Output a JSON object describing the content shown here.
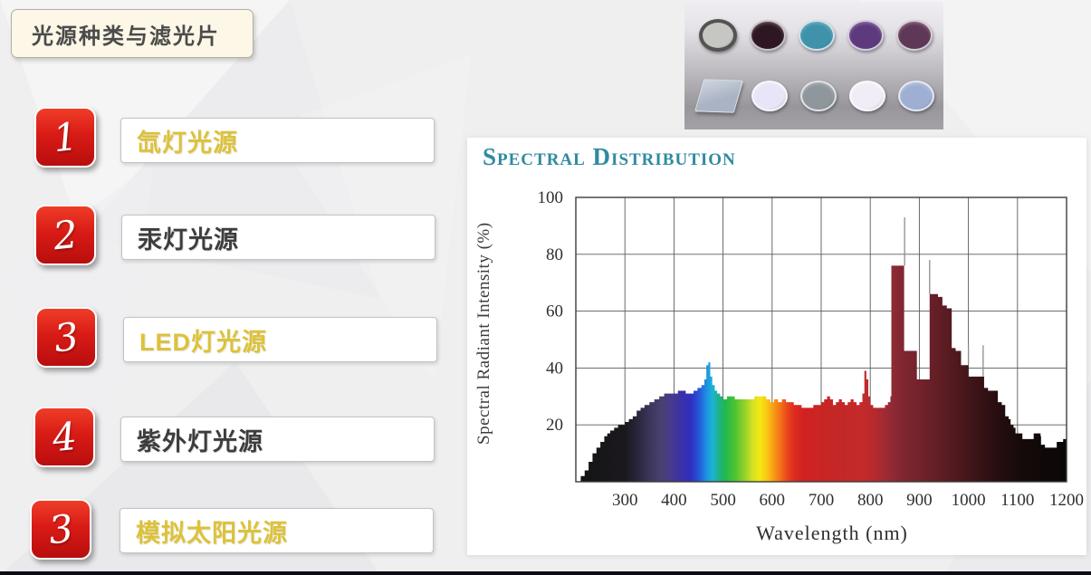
{
  "slide": {
    "title": "光源种类与滤光片",
    "items": [
      {
        "number": "1",
        "label": "氙灯光源",
        "highlight": true
      },
      {
        "number": "2",
        "label": "汞灯光源",
        "highlight": false
      },
      {
        "number": "3",
        "label": "LED灯光源",
        "highlight": true
      },
      {
        "number": "4",
        "label": "紫外灯光源",
        "highlight": false
      },
      {
        "number": "3",
        "label": "模拟太阳光源",
        "highlight": true
      }
    ],
    "colors": {
      "badge_red_top": "#ef3d28",
      "badge_red_bottom": "#b80e0e",
      "highlight_text": "#dcc23c",
      "normal_text": "#3d3d3d",
      "title_bg": "#fcf7e6",
      "background": "#efeff0"
    }
  },
  "filters_photo": {
    "rows": [
      {
        "shapes": [
          {
            "type": "ring",
            "name": "gray-mounted-filter",
            "color": "#c6c7c3",
            "ring": "#54534f"
          },
          {
            "type": "ellipse",
            "name": "dark-maroon-filter",
            "color": "#2e1722"
          },
          {
            "type": "ellipse",
            "name": "teal-filter",
            "color": "#3e93ab"
          },
          {
            "type": "ellipse",
            "name": "purple-filter",
            "color": "#5d3a7d"
          },
          {
            "type": "ellipse",
            "name": "dark-plum-filter",
            "color": "#5f3757"
          }
        ]
      },
      {
        "shapes": [
          {
            "type": "square",
            "name": "square-glass-filter",
            "color": "#aab3c4"
          },
          {
            "type": "ellipse",
            "name": "lavender-white-filter",
            "color": "#e7e5f8"
          },
          {
            "type": "ellipse",
            "name": "gray-filter",
            "color": "#8d979c"
          },
          {
            "type": "ellipse",
            "name": "white-filter",
            "color": "#f0edf6"
          },
          {
            "type": "ellipse",
            "name": "periwinkle-filter",
            "color": "#9fafd4"
          }
        ]
      }
    ]
  },
  "chart_data": {
    "type": "area",
    "title": "Spectral Distribution",
    "xlabel": "Wavelength (nm)",
    "ylabel": "Spectral Radiant Intensity (%)",
    "xlim": [
      200,
      1200
    ],
    "ylim": [
      0,
      100
    ],
    "x_ticks": [
      300,
      400,
      500,
      600,
      700,
      800,
      900,
      1000,
      1100,
      1200
    ],
    "y_ticks": [
      20,
      40,
      60,
      80,
      100
    ],
    "grid": true,
    "legend": "none",
    "series_name": "xenon-lamp-spectral-output",
    "points": [
      [
        200,
        0
      ],
      [
        210,
        2
      ],
      [
        218,
        4
      ],
      [
        226,
        7
      ],
      [
        234,
        10
      ],
      [
        242,
        12
      ],
      [
        250,
        14
      ],
      [
        258,
        16
      ],
      [
        264,
        17
      ],
      [
        270,
        18
      ],
      [
        278,
        19
      ],
      [
        286,
        20
      ],
      [
        295,
        20
      ],
      [
        300,
        21
      ],
      [
        308,
        22
      ],
      [
        316,
        23
      ],
      [
        324,
        25
      ],
      [
        332,
        26
      ],
      [
        340,
        27
      ],
      [
        350,
        28
      ],
      [
        360,
        29
      ],
      [
        370,
        30
      ],
      [
        380,
        31
      ],
      [
        390,
        31
      ],
      [
        400,
        31
      ],
      [
        408,
        32
      ],
      [
        416,
        32
      ],
      [
        424,
        31
      ],
      [
        432,
        31
      ],
      [
        440,
        32
      ],
      [
        448,
        33
      ],
      [
        456,
        34
      ],
      [
        462,
        36
      ],
      [
        466,
        41
      ],
      [
        470,
        42
      ],
      [
        474,
        37
      ],
      [
        478,
        34
      ],
      [
        483,
        32
      ],
      [
        488,
        31
      ],
      [
        494,
        30
      ],
      [
        500,
        29
      ],
      [
        508,
        30
      ],
      [
        516,
        30
      ],
      [
        524,
        29
      ],
      [
        532,
        29
      ],
      [
        540,
        29
      ],
      [
        548,
        29
      ],
      [
        556,
        29
      ],
      [
        564,
        30
      ],
      [
        572,
        30
      ],
      [
        580,
        30
      ],
      [
        588,
        29
      ],
      [
        596,
        28
      ],
      [
        604,
        29
      ],
      [
        612,
        28
      ],
      [
        620,
        29
      ],
      [
        628,
        28
      ],
      [
        636,
        28
      ],
      [
        644,
        27
      ],
      [
        652,
        27
      ],
      [
        660,
        26
      ],
      [
        668,
        26
      ],
      [
        676,
        26
      ],
      [
        684,
        27
      ],
      [
        692,
        27
      ],
      [
        700,
        28
      ],
      [
        706,
        29
      ],
      [
        712,
        30
      ],
      [
        718,
        29
      ],
      [
        724,
        27
      ],
      [
        730,
        28
      ],
      [
        736,
        29
      ],
      [
        742,
        28
      ],
      [
        748,
        27
      ],
      [
        754,
        28
      ],
      [
        760,
        29
      ],
      [
        766,
        28
      ],
      [
        772,
        27
      ],
      [
        778,
        28
      ],
      [
        784,
        31
      ],
      [
        788,
        39
      ],
      [
        792,
        36
      ],
      [
        796,
        30
      ],
      [
        800,
        27
      ],
      [
        806,
        26
      ],
      [
        812,
        26
      ],
      [
        818,
        26
      ],
      [
        824,
        26
      ],
      [
        830,
        27
      ],
      [
        836,
        28
      ],
      [
        841,
        30
      ],
      [
        843,
        76
      ],
      [
        852,
        76
      ],
      [
        860,
        76
      ],
      [
        868,
        76
      ],
      [
        869,
        46
      ],
      [
        878,
        46
      ],
      [
        886,
        46
      ],
      [
        894,
        46
      ],
      [
        895,
        36
      ],
      [
        904,
        36
      ],
      [
        912,
        36
      ],
      [
        920,
        36
      ],
      [
        921,
        66
      ],
      [
        930,
        66
      ],
      [
        938,
        65
      ],
      [
        946,
        65
      ],
      [
        947,
        62
      ],
      [
        956,
        61
      ],
      [
        964,
        61
      ],
      [
        966,
        47
      ],
      [
        974,
        46
      ],
      [
        982,
        46
      ],
      [
        985,
        41
      ],
      [
        992,
        41
      ],
      [
        999,
        41
      ],
      [
        1000,
        37
      ],
      [
        1010,
        37
      ],
      [
        1020,
        37
      ],
      [
        1030,
        37
      ],
      [
        1032,
        33
      ],
      [
        1040,
        32
      ],
      [
        1050,
        32
      ],
      [
        1058,
        32
      ],
      [
        1060,
        28
      ],
      [
        1068,
        27
      ],
      [
        1075,
        23
      ],
      [
        1082,
        22
      ],
      [
        1086,
        20
      ],
      [
        1092,
        19
      ],
      [
        1096,
        17
      ],
      [
        1104,
        17
      ],
      [
        1110,
        15
      ],
      [
        1118,
        15
      ],
      [
        1126,
        15
      ],
      [
        1133,
        17
      ],
      [
        1140,
        17
      ],
      [
        1147,
        16
      ],
      [
        1148,
        13
      ],
      [
        1156,
        12
      ],
      [
        1164,
        12
      ],
      [
        1172,
        12
      ],
      [
        1180,
        14
      ],
      [
        1188,
        14
      ],
      [
        1193,
        15
      ],
      [
        1200,
        15
      ]
    ],
    "spike_lines": [
      [
        870,
        93,
        76
      ],
      [
        921,
        78,
        66
      ],
      [
        1000,
        48,
        41
      ],
      [
        1030,
        48,
        37
      ]
    ],
    "spectrum_gradient": [
      [
        200,
        "#131313"
      ],
      [
        300,
        "#1a181d"
      ],
      [
        330,
        "#2c2841"
      ],
      [
        355,
        "#3e3960"
      ],
      [
        375,
        "#494170"
      ],
      [
        395,
        "#463a8e"
      ],
      [
        415,
        "#3b30a8"
      ],
      [
        435,
        "#2e30c2"
      ],
      [
        450,
        "#2653d6"
      ],
      [
        465,
        "#1f8ce2"
      ],
      [
        478,
        "#1bb3d6"
      ],
      [
        492,
        "#1fb188"
      ],
      [
        505,
        "#23b74d"
      ],
      [
        525,
        "#4ec432"
      ],
      [
        545,
        "#97d22a"
      ],
      [
        560,
        "#d0e222"
      ],
      [
        575,
        "#f5e714"
      ],
      [
        590,
        "#f9c613"
      ],
      [
        603,
        "#f89c15"
      ],
      [
        616,
        "#f37419"
      ],
      [
        630,
        "#ea491c"
      ],
      [
        645,
        "#dd2b1e"
      ],
      [
        662,
        "#d22222"
      ],
      [
        700,
        "#c92424"
      ],
      [
        745,
        "#c32828"
      ],
      [
        780,
        "#c52a2a"
      ],
      [
        805,
        "#b82a2c"
      ],
      [
        830,
        "#a02a32"
      ],
      [
        845,
        "#8e2a34"
      ],
      [
        870,
        "#7e2530"
      ],
      [
        900,
        "#73222b"
      ],
      [
        930,
        "#661f27"
      ],
      [
        960,
        "#571b21"
      ],
      [
        990,
        "#48171b"
      ],
      [
        1020,
        "#391316"
      ],
      [
        1050,
        "#2b0f12"
      ],
      [
        1080,
        "#1f0c0d"
      ],
      [
        1110,
        "#150a0a"
      ],
      [
        1200,
        "#0b0707"
      ]
    ],
    "title_color": "#2e8ba1",
    "grid_color": "#5a5a5a",
    "frame_color": "#3d3d3d"
  }
}
